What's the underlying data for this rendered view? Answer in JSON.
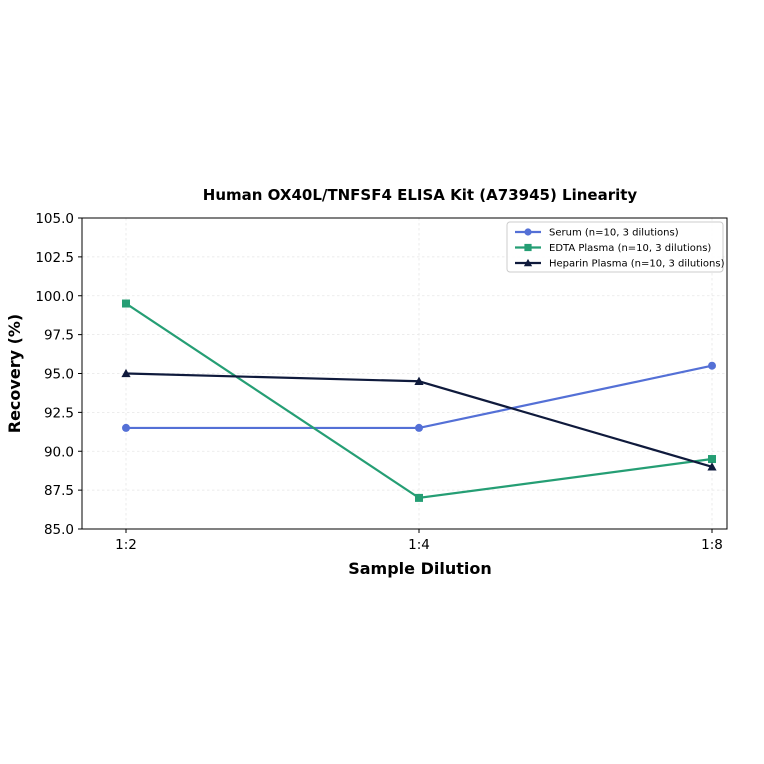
{
  "chart_data": {
    "type": "line",
    "title": "Human OX40L/TNFSF4 ELISA Kit (A73945) Linearity",
    "xlabel": "Sample Dilution",
    "ylabel": "Recovery (%)",
    "categories": [
      "1:2",
      "1:4",
      "1:8"
    ],
    "ylim": [
      85.0,
      105.0
    ],
    "yticks": [
      "85.0",
      "87.5",
      "90.0",
      "92.5",
      "95.0",
      "97.5",
      "100.0",
      "102.5",
      "105.0"
    ],
    "grid": true,
    "legend_position": "top-right",
    "series": [
      {
        "name": "Serum (n=10, 3 dilutions)",
        "values": [
          91.5,
          91.5,
          95.5
        ],
        "color": "#5470d6",
        "marker": "circle"
      },
      {
        "name": "EDTA Plasma (n=10, 3 dilutions)",
        "values": [
          99.5,
          87.0,
          89.5
        ],
        "color": "#259e74",
        "marker": "square"
      },
      {
        "name": "Heparin Plasma (n=10, 3 dilutions)",
        "values": [
          95.0,
          94.5,
          89.0
        ],
        "color": "#0f1a3c",
        "marker": "triangle"
      }
    ]
  }
}
